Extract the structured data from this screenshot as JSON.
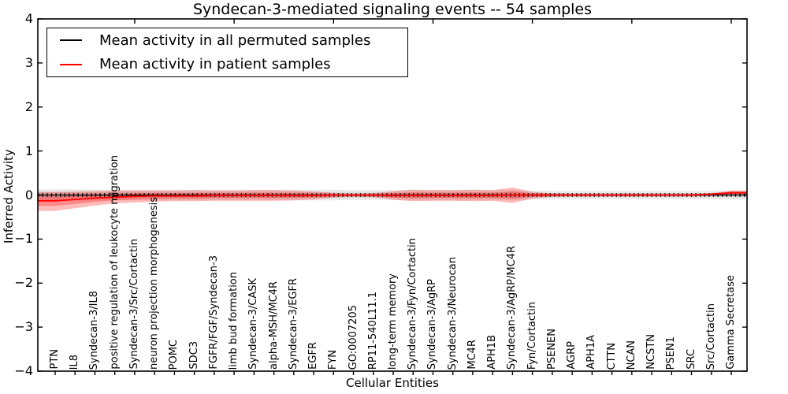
{
  "figure_title": "Syndecan-3-mediated signaling events -- 54 samples",
  "chart_data": {
    "type": "line",
    "title": "Syndecan-3-mediated signaling events -- 54 samples",
    "xlabel": "Cellular Entities",
    "ylabel": "Inferred Activity",
    "ylim": [
      -4,
      4
    ],
    "yticks": [
      4,
      3,
      2,
      1,
      0,
      -1,
      -2,
      -3,
      -4
    ],
    "x_major_ticks": [
      5,
      10,
      15,
      20,
      25,
      30,
      35
    ],
    "grid": false,
    "legend_position": "upper left",
    "background": "#ffffff",
    "categories": [
      "PTN",
      "IL8",
      "Syndecan-3/IL8",
      "positive regulation of leukocyte migration",
      "Syndecan-3/Src/Cortactin",
      "neuron projection morphogenesis",
      "POMC",
      "SDC3",
      "FGFR/FGF/Syndecan-3",
      "limb bud formation",
      "Syndecan-3/CASK",
      "alpha-MSH/MC4R",
      "Syndecan-3/EGFR",
      "EGFR",
      "FYN",
      "GO:0007205",
      "RP11-540L11.1",
      "long-term memory",
      "Syndecan-3/Fyn/Cortactin",
      "Syndecan-3/AgRP",
      "Syndecan-3/Neurocan",
      "MC4R",
      "APH1B",
      "Syndecan-3/AgRP/MC4R",
      "Fyn/Cortactin",
      "PSENEN",
      "AGRP",
      "APH1A",
      "CTTN",
      "NCAN",
      "NCSTN",
      "PSEN1",
      "SRC",
      "Src/Cortactin",
      "Gamma Secretase"
    ],
    "series": [
      {
        "name": "Mean activity in all permuted samples",
        "color": "#000000",
        "band_color": "rgba(0,0,0,0.09)",
        "values": [
          0,
          0,
          0,
          0,
          0,
          0,
          0,
          0,
          0,
          0,
          0,
          0,
          0,
          0,
          0,
          0,
          0,
          0,
          0,
          0,
          0,
          0,
          0,
          0,
          0,
          0,
          0,
          0,
          0,
          0,
          0,
          0,
          0,
          0,
          0
        ],
        "band_halfwidth": [
          0.13,
          0.13,
          0.12,
          0.12,
          0.12,
          0.12,
          0.12,
          0.12,
          0.12,
          0.12,
          0.12,
          0.12,
          0.12,
          0.12,
          0.12,
          0.11,
          0.11,
          0.11,
          0.12,
          0.12,
          0.12,
          0.12,
          0.12,
          0.12,
          0.1,
          0.09,
          0.09,
          0.09,
          0.09,
          0.09,
          0.09,
          0.09,
          0.09,
          0.09,
          0.1
        ]
      },
      {
        "name": "Mean activity in patient samples",
        "color": "#ff0000",
        "band_color": "rgba(255,0,0,0.27)",
        "values": [
          -0.13,
          -0.1,
          -0.07,
          -0.05,
          -0.03,
          -0.02,
          -0.02,
          -0.02,
          -0.01,
          -0.01,
          -0.01,
          -0.01,
          -0.01,
          -0.01,
          0,
          0,
          0,
          -0.01,
          -0.01,
          -0.01,
          -0.01,
          -0.01,
          -0.01,
          0,
          0,
          0,
          0,
          0,
          0,
          0,
          0,
          0,
          0,
          0.02,
          0.05
        ],
        "band_upper": [
          0.07,
          0.08,
          0.09,
          0.1,
          0.1,
          0.1,
          0.1,
          0.11,
          0.1,
          0.1,
          0.11,
          0.11,
          0.1,
          0.08,
          0.05,
          0.03,
          0.04,
          0.09,
          0.12,
          0.11,
          0.11,
          0.12,
          0.11,
          0.17,
          0.07,
          0.04,
          0.03,
          0.03,
          0.03,
          0.03,
          0.03,
          0.03,
          0.03,
          0.04,
          0.1
        ],
        "band_lower": [
          -0.36,
          -0.3,
          -0.24,
          -0.19,
          -0.17,
          -0.15,
          -0.14,
          -0.14,
          -0.13,
          -0.13,
          -0.13,
          -0.13,
          -0.12,
          -0.1,
          -0.06,
          -0.04,
          -0.05,
          -0.11,
          -0.14,
          -0.13,
          -0.13,
          -0.14,
          -0.13,
          -0.18,
          -0.08,
          -0.04,
          -0.03,
          -0.03,
          -0.03,
          -0.03,
          -0.03,
          -0.03,
          -0.03,
          -0.02,
          0.0
        ]
      }
    ]
  }
}
